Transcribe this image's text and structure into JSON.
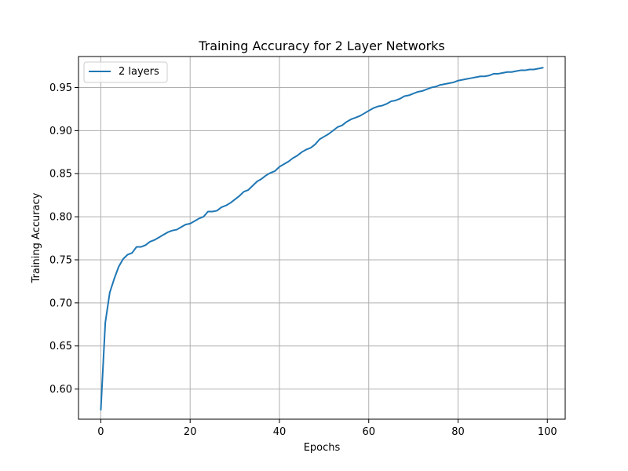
{
  "chart_data": {
    "type": "line",
    "title": "Training Accuracy for 2 Layer Networks",
    "xlabel": "Epochs",
    "ylabel": "Training Accuracy",
    "xlim": [
      -5,
      104
    ],
    "ylim": [
      0.565,
      0.986
    ],
    "xticks": [
      0,
      20,
      40,
      60,
      80,
      100
    ],
    "xtick_labels": [
      "0",
      "20",
      "40",
      "60",
      "80",
      "100"
    ],
    "yticks": [
      0.6,
      0.65,
      0.7,
      0.75,
      0.8,
      0.85,
      0.9,
      0.95
    ],
    "ytick_labels": [
      "0.60",
      "0.65",
      "0.70",
      "0.75",
      "0.80",
      "0.85",
      "0.90",
      "0.95"
    ],
    "grid": true,
    "legend_position": "top-left",
    "series": [
      {
        "name": "2 layers",
        "color": "#1f77b4",
        "x": [
          0,
          1,
          2,
          3,
          4,
          5,
          6,
          7,
          8,
          9,
          10,
          11,
          12,
          13,
          14,
          15,
          16,
          17,
          18,
          19,
          20,
          21,
          22,
          23,
          24,
          25,
          26,
          27,
          28,
          29,
          30,
          31,
          32,
          33,
          34,
          35,
          36,
          37,
          38,
          39,
          40,
          41,
          42,
          43,
          44,
          45,
          46,
          47,
          48,
          49,
          50,
          51,
          52,
          53,
          54,
          55,
          56,
          57,
          58,
          59,
          60,
          61,
          62,
          63,
          64,
          65,
          66,
          67,
          68,
          69,
          70,
          71,
          72,
          73,
          74,
          75,
          76,
          77,
          78,
          79,
          80,
          81,
          82,
          83,
          84,
          85,
          86,
          87,
          88,
          89,
          90,
          91,
          92,
          93,
          94,
          95,
          96,
          97,
          98,
          99
        ],
        "y": [
          0.576,
          0.677,
          0.712,
          0.728,
          0.742,
          0.751,
          0.756,
          0.758,
          0.765,
          0.765,
          0.767,
          0.771,
          0.773,
          0.776,
          0.779,
          0.782,
          0.784,
          0.785,
          0.788,
          0.791,
          0.792,
          0.795,
          0.798,
          0.8,
          0.806,
          0.806,
          0.807,
          0.811,
          0.813,
          0.816,
          0.82,
          0.824,
          0.829,
          0.831,
          0.836,
          0.841,
          0.844,
          0.848,
          0.851,
          0.853,
          0.858,
          0.861,
          0.864,
          0.868,
          0.871,
          0.875,
          0.878,
          0.88,
          0.884,
          0.89,
          0.893,
          0.896,
          0.9,
          0.904,
          0.906,
          0.91,
          0.913,
          0.915,
          0.917,
          0.92,
          0.923,
          0.926,
          0.928,
          0.929,
          0.931,
          0.934,
          0.935,
          0.937,
          0.94,
          0.941,
          0.943,
          0.945,
          0.946,
          0.948,
          0.95,
          0.951,
          0.953,
          0.954,
          0.955,
          0.956,
          0.958,
          0.959,
          0.96,
          0.961,
          0.962,
          0.963,
          0.963,
          0.964,
          0.966,
          0.966,
          0.967,
          0.968,
          0.968,
          0.969,
          0.97,
          0.97,
          0.971,
          0.971,
          0.972,
          0.973
        ]
      }
    ]
  }
}
